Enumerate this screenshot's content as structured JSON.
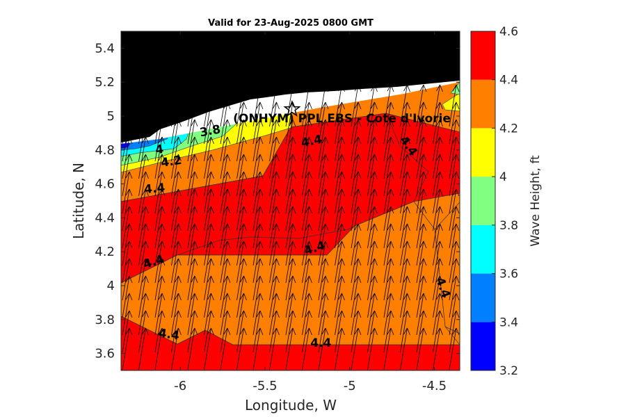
{
  "chart_data": {
    "type": "contour",
    "title": "Valid for 23-Aug-2025 0800 GMT",
    "xlabel": "Longitude, W",
    "ylabel": "Latitude, N",
    "xlim": [
      -6.35,
      -4.35
    ],
    "ylim": [
      3.5,
      5.5
    ],
    "xticks": [
      -6,
      -5.5,
      -5,
      -4.5
    ],
    "xtick_labels": [
      "-6",
      "-5.5",
      "-5",
      "-4.5"
    ],
    "yticks": [
      3.6,
      3.8,
      4.0,
      4.2,
      4.4,
      4.6,
      4.8,
      5.0,
      5.2,
      5.4
    ],
    "ytick_labels": [
      "3.6",
      "3.8",
      "4",
      "4.2",
      "4.4",
      "4.6",
      "4.8",
      "5",
      "5.2",
      "5.4"
    ],
    "colorbar": {
      "label": "Wave Height, ft",
      "levels": [
        3.2,
        3.4,
        3.6,
        3.8,
        4.0,
        4.2,
        4.4,
        4.6
      ],
      "tick_labels": [
        "3.2",
        "3.4",
        "3.6",
        "3.8",
        "4",
        "4.2",
        "4.4",
        "4.6"
      ],
      "colors": [
        "#0000ff",
        "#0080ff",
        "#00ffff",
        "#80ff80",
        "#ffff00",
        "#ff8000",
        "#ff0000"
      ]
    },
    "contour_labels": [
      {
        "text": "3.8",
        "lon": -5.82,
        "lat": 4.89,
        "rot": -10
      },
      {
        "text": "4",
        "lon": -6.12,
        "lat": 4.78,
        "rot": -8
      },
      {
        "text": "4.2",
        "lon": -6.05,
        "lat": 4.71,
        "rot": -8
      },
      {
        "text": "4.4",
        "lon": -6.15,
        "lat": 4.55,
        "rot": -5
      },
      {
        "text": "4.4",
        "lon": -5.22,
        "lat": 4.83,
        "rot": -12
      },
      {
        "text": "4.4",
        "lon": -4.67,
        "lat": 4.81,
        "rot": 55
      },
      {
        "text": "4.4",
        "lon": -6.15,
        "lat": 4.12,
        "rot": -18
      },
      {
        "text": "4.4",
        "lon": -5.2,
        "lat": 4.2,
        "rot": -18
      },
      {
        "text": "4.4",
        "lon": -4.47,
        "lat": 3.98,
        "rot": 70
      },
      {
        "text": "4.4",
        "lon": -6.07,
        "lat": 3.69,
        "rot": 8
      },
      {
        "text": "4.4",
        "lon": -5.17,
        "lat": 3.64,
        "rot": 0
      }
    ],
    "station": {
      "label": "(ONHYM) PPL EBS - Cote d'Ivorie",
      "lon": -5.34,
      "lat": 5.04
    },
    "wind_vectors": "arrow field, all pointing north-north-east (toward coast)"
  }
}
